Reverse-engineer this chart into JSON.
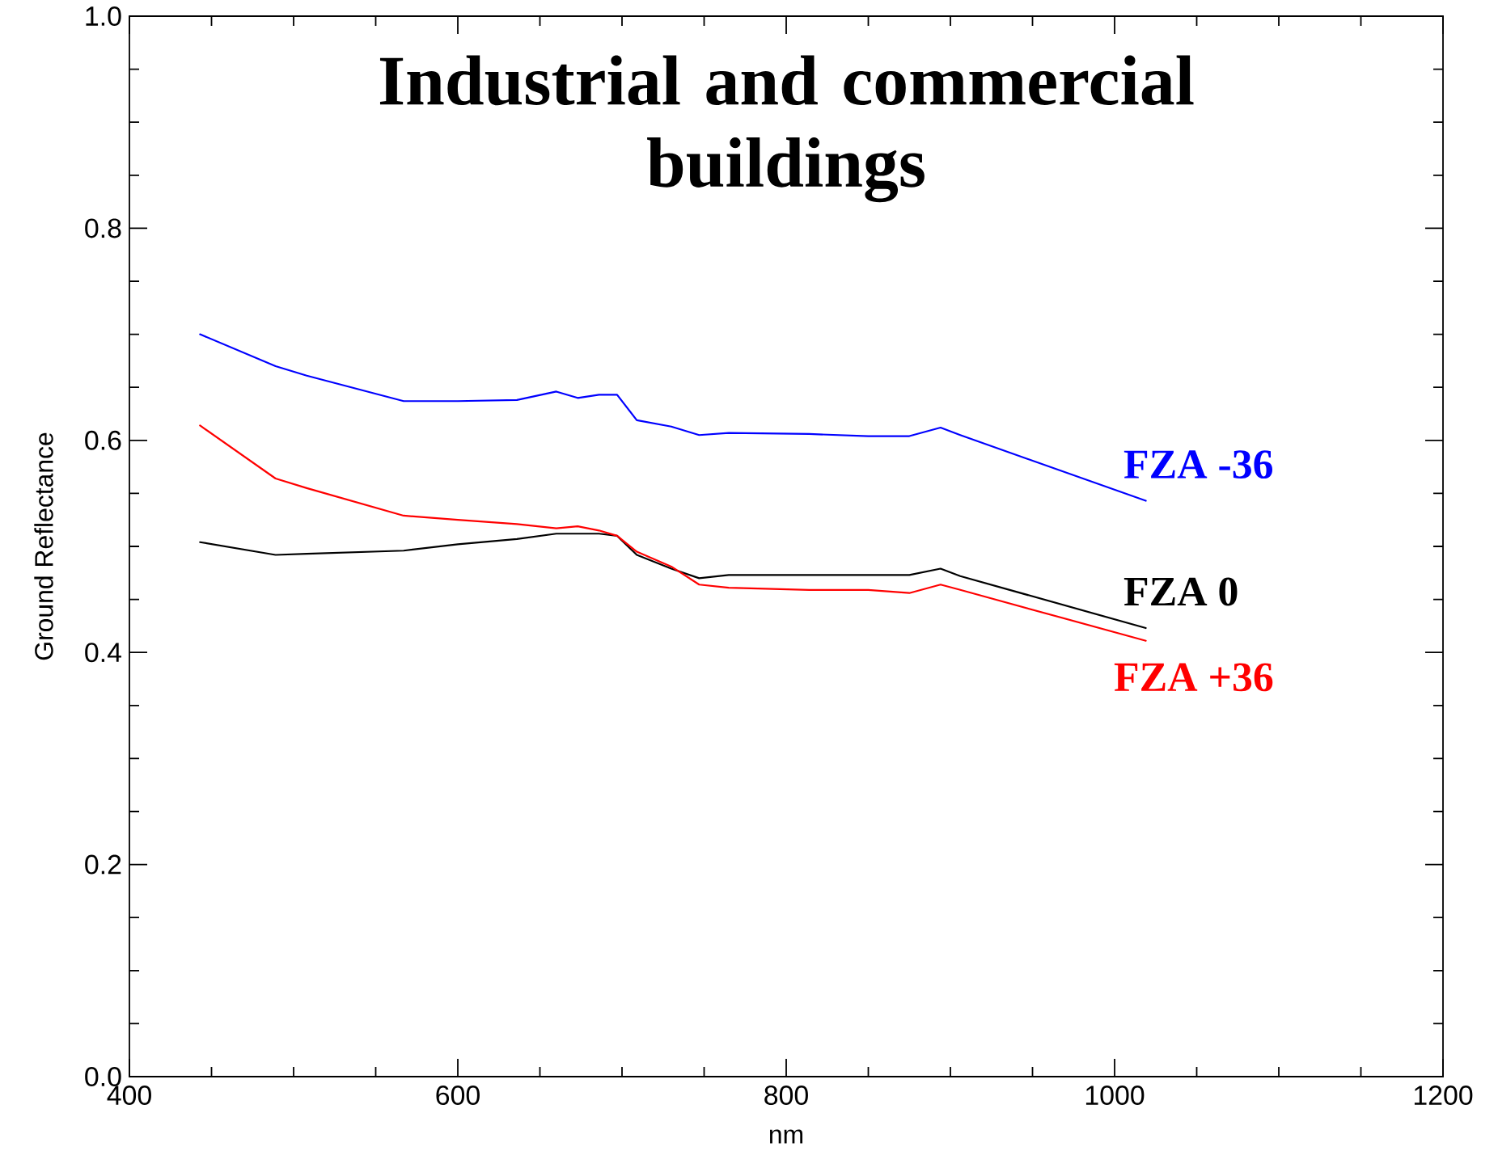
{
  "chart_data": {
    "type": "line",
    "title": "Industrial and commercial buildings",
    "xlabel": "nm",
    "ylabel": "Ground Reflectance",
    "xlim": [
      400,
      1200
    ],
    "ylim": [
      0,
      1
    ],
    "xticks": [
      400,
      600,
      800,
      1000,
      1200
    ],
    "yticks": [
      {
        "value": 0,
        "label": "0.0"
      },
      0.2,
      0.4,
      0.6,
      0.8,
      {
        "value": 1,
        "label": "1.0"
      }
    ],
    "line_style": "solid",
    "x": [
      443,
      489,
      508,
      567,
      600,
      636,
      660,
      673,
      686,
      697,
      709,
      730,
      747,
      765,
      814,
      850,
      875,
      894,
      906,
      1019
    ],
    "series": [
      {
        "name": "FZA -36",
        "color": "#0000ff",
        "values": [
          0.7,
          0.67,
          0.661,
          0.637,
          0.637,
          0.638,
          0.646,
          0.64,
          0.643,
          0.643,
          0.619,
          0.613,
          0.605,
          0.607,
          0.606,
          0.604,
          0.604,
          0.612,
          0.605,
          0.543
        ]
      },
      {
        "name": "FZA 0",
        "color": "#000000",
        "values": [
          0.504,
          0.492,
          0.493,
          0.496,
          0.502,
          0.507,
          0.512,
          0.512,
          0.512,
          0.51,
          0.492,
          0.479,
          0.47,
          0.473,
          0.473,
          0.473,
          0.473,
          0.479,
          0.472,
          0.423
        ]
      },
      {
        "name": "FZA +36",
        "color": "#ff0000",
        "values": [
          0.614,
          0.564,
          0.555,
          0.529,
          0.525,
          0.521,
          0.517,
          0.519,
          0.515,
          0.51,
          0.495,
          0.481,
          0.464,
          0.461,
          0.459,
          0.459,
          0.456,
          0.464,
          0.459,
          0.411
        ]
      }
    ]
  }
}
